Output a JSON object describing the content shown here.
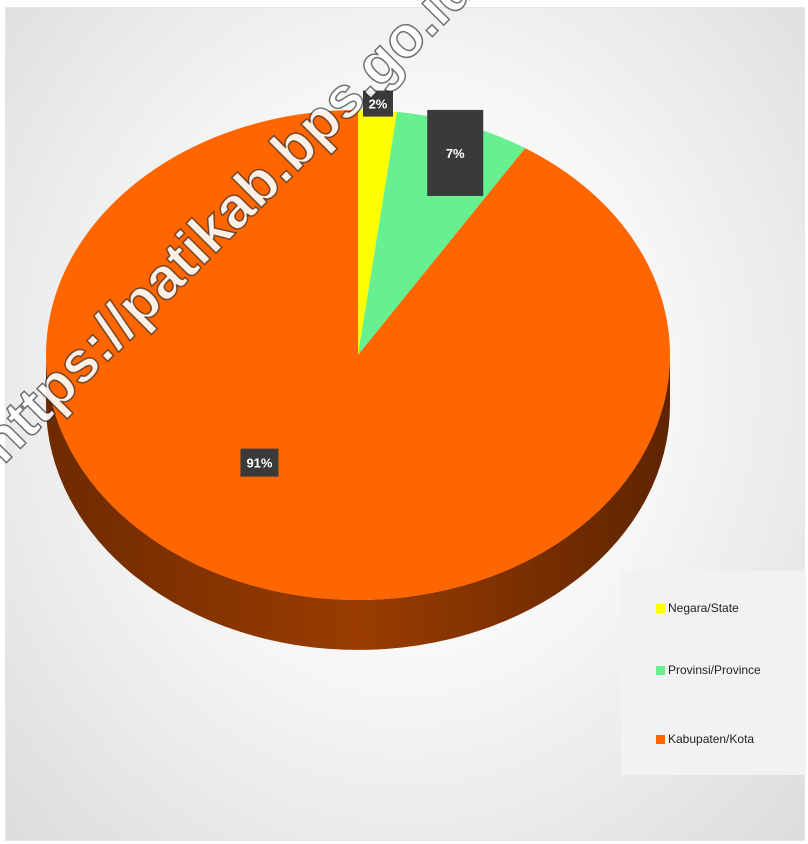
{
  "chart_data": {
    "type": "pie",
    "categories": [
      "Negara/State",
      "Provinsi/Province",
      "Kabupaten/Kota"
    ],
    "values": [
      2,
      7,
      91
    ],
    "data_labels": [
      "2%",
      "7%",
      "91%"
    ],
    "colors": [
      "#ffff00",
      "#66f08f",
      "#ff6600"
    ],
    "side_colors": [
      "#b3b300",
      "#3aa85f",
      "#7a2f00"
    ],
    "style": "3d",
    "legend": "right"
  },
  "watermark": "https://patikab.bps.go.id"
}
